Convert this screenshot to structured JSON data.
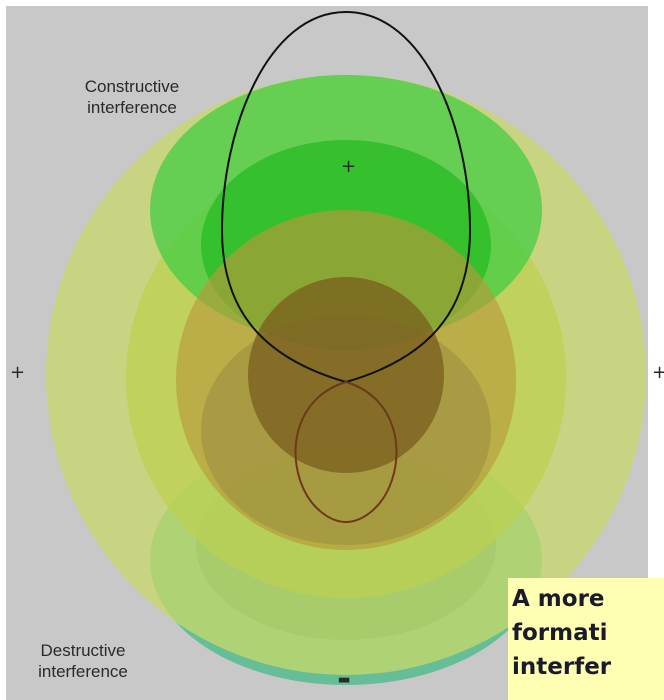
{
  "labels": {
    "constructive": "Constructive interference",
    "destructive": "Destructive interference"
  },
  "signs": {
    "top_lobe": "+",
    "left": "+",
    "right": "+",
    "bottom": "-"
  },
  "caption_lines": [
    "A more",
    "formati",
    "interfer"
  ],
  "colors": {
    "background": "#c8c8c8",
    "green_lobe": "#33cc33",
    "dark_green": "#22aa22",
    "yellow_green": "#cccc33",
    "olive": "#886622",
    "teal_green": "#44bb88",
    "outline": "#111111",
    "caption_bg": "#ffffb4"
  }
}
